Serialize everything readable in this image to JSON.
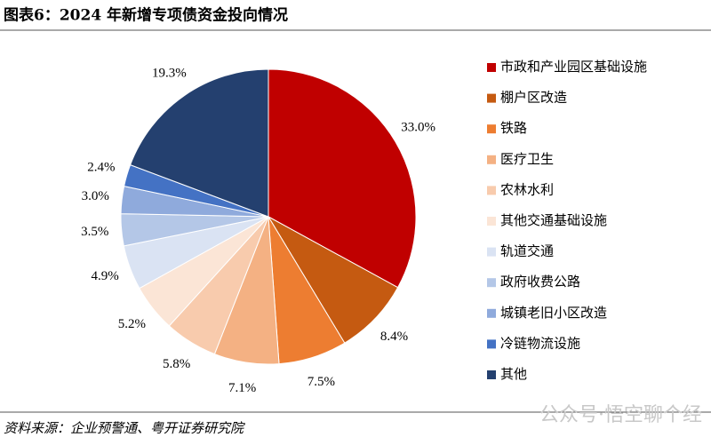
{
  "chart_data": {
    "type": "pie",
    "title": "图表6：2024 年新增专项债资金投向情况",
    "source": "资料来源：企业预警通、粤开证券研究院",
    "watermark": "公众号·悟空聊个经",
    "categories": [
      "市政和产业园区基础设施",
      "棚户区改造",
      "铁路",
      "医疗卫生",
      "农林水利",
      "其他交通基础设施",
      "轨道交通",
      "政府收费公路",
      "城镇老旧小区改造",
      "冷链物流设施",
      "其他"
    ],
    "values": [
      33.0,
      8.4,
      7.5,
      7.1,
      5.8,
      5.2,
      4.9,
      3.5,
      3.0,
      2.4,
      19.3
    ],
    "value_labels": [
      "33.0%",
      "8.4%",
      "7.5%",
      "7.1%",
      "5.8%",
      "5.2%",
      "4.9%",
      "3.5%",
      "3.0%",
      "2.4%",
      "19.3%"
    ],
    "colors": [
      "#c00000",
      "#c55a11",
      "#ed7d31",
      "#f4b183",
      "#f8cbad",
      "#fbe5d6",
      "#dae3f3",
      "#b4c7e7",
      "#8faadc",
      "#4472c4",
      "#24406f"
    ],
    "legend": "right"
  }
}
